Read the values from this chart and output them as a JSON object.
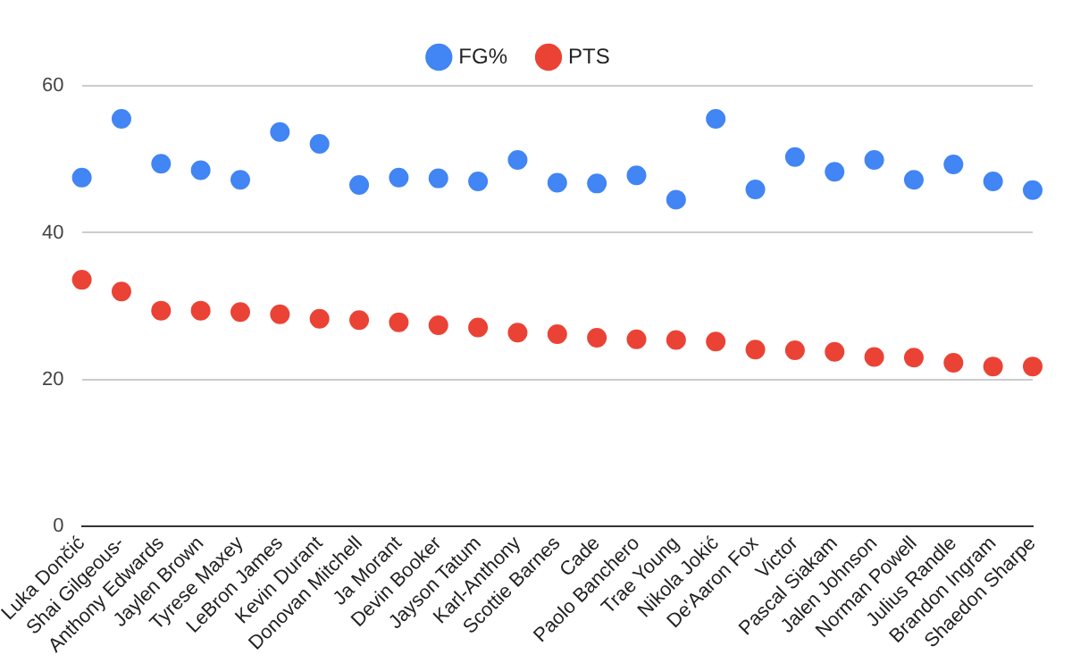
{
  "chart_data": {
    "type": "scatter",
    "categories": [
      "Luka Dončić",
      "Shai Gilgeous-",
      "Anthony Edwards",
      "Jaylen Brown",
      "Tyrese Maxey",
      "LeBron James",
      "Kevin Durant",
      "Donovan Mitchell",
      "Ja Morant",
      "Devin Booker",
      "Jayson Tatum",
      "Karl-Anthony",
      "Scottie Barnes",
      "Cade",
      "Paolo Banchero",
      "Trae Young",
      "Nikola Jokić",
      "De'Aaron Fox",
      "Victor",
      "Pascal Siakam",
      "Jalen Johnson",
      "Norman Powell",
      "Julius Randle",
      "Brandon Ingram",
      "Shaedon Sharpe"
    ],
    "series": [
      {
        "name": "FG%",
        "color": "#4285f4",
        "values": [
          47.5,
          55.5,
          49.4,
          48.5,
          47.2,
          53.7,
          52.1,
          46.5,
          47.5,
          47.4,
          47.0,
          49.9,
          46.8,
          46.7,
          47.8,
          44.5,
          55.5,
          45.9,
          50.3,
          48.3,
          49.9,
          47.2,
          49.3,
          47.0,
          45.8
        ]
      },
      {
        "name": "PTS",
        "color": "#ea4335",
        "values": [
          33.6,
          32.0,
          29.4,
          29.4,
          29.2,
          28.9,
          28.3,
          28.1,
          27.8,
          27.4,
          27.1,
          26.4,
          26.2,
          25.7,
          25.5,
          25.4,
          25.2,
          24.1,
          24.0,
          23.8,
          23.1,
          23.0,
          22.3,
          21.8,
          21.8
        ]
      }
    ],
    "ylim": [
      0,
      60
    ],
    "yticks": [
      0,
      20,
      40,
      60
    ],
    "grid": "y",
    "legend": "top",
    "marker": "circle"
  }
}
